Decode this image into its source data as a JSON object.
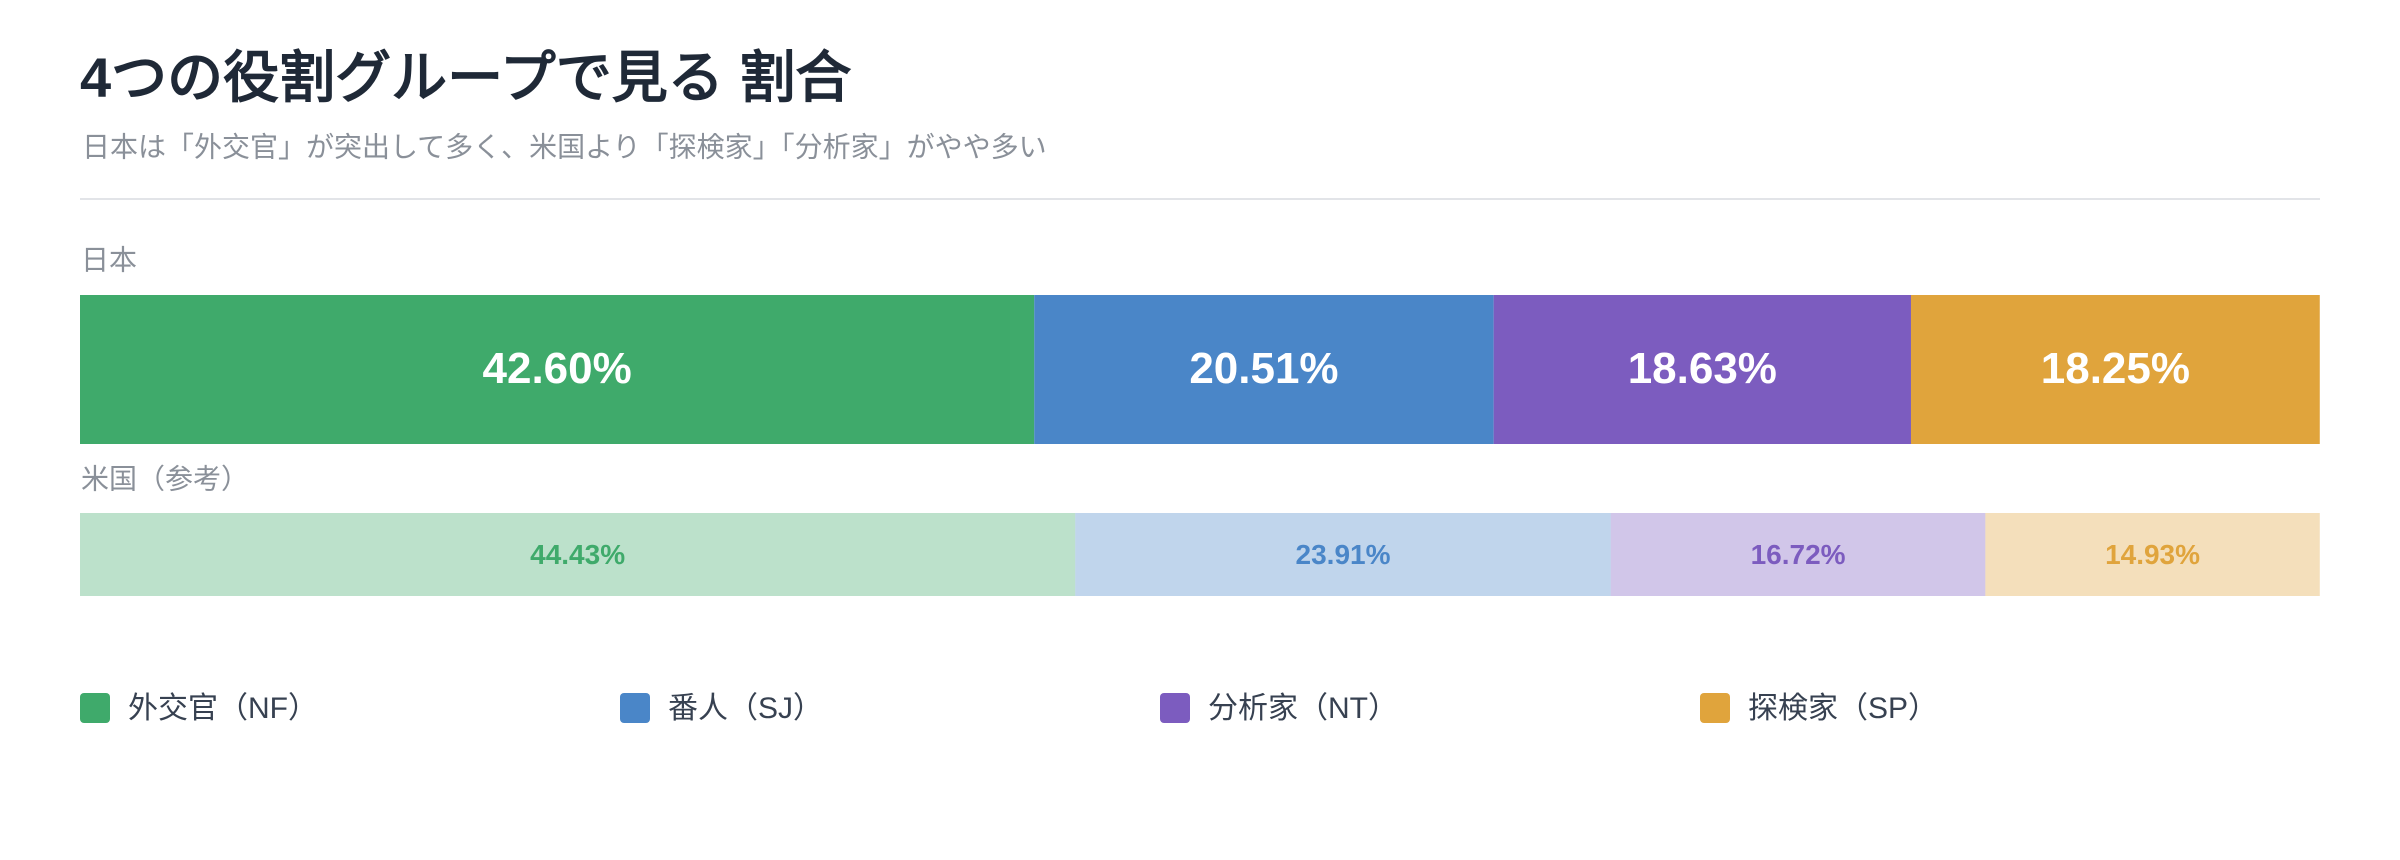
{
  "chart_data": {
    "type": "stacked-bar-100",
    "title": "4つの役割グループで見る 割合",
    "subtitle": "日本は「外交官」が突出して多く、米国より「探検家」「分析家」がやや多い",
    "categories": [
      "日本",
      "米国（参考）"
    ],
    "xlim": [
      0,
      100
    ],
    "series": [
      {
        "name": "外交官（NF）",
        "color": "#3faa6b",
        "values": [
          42.6,
          44.43
        ],
        "value_labels": [
          "42.60%",
          "44.43%"
        ]
      },
      {
        "name": "番人（SJ）",
        "color": "#4a86c8",
        "values": [
          20.51,
          23.91
        ],
        "value_labels": [
          "20.51%",
          "23.91%"
        ]
      },
      {
        "name": "分析家（NT）",
        "color": "#7c5cbf",
        "values": [
          18.63,
          16.72
        ],
        "value_labels": [
          "18.63%",
          "16.72%"
        ]
      },
      {
        "name": "探検家（SP）",
        "color": "#e0a43c",
        "values": [
          18.25,
          14.93
        ],
        "value_labels": [
          "18.25%",
          "14.93%"
        ]
      }
    ]
  }
}
